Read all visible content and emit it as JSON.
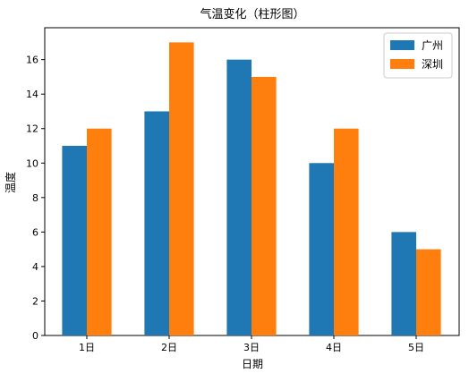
{
  "chart_data": {
    "type": "bar",
    "title": "气温变化（柱形图）",
    "xlabel": "日期",
    "ylabel": "温度",
    "categories": [
      "1日",
      "2日",
      "3日",
      "4日",
      "5日"
    ],
    "series": [
      {
        "name": "广州",
        "values": [
          11,
          13,
          16,
          10,
          6
        ],
        "color": "#1f77b4"
      },
      {
        "name": "深圳",
        "values": [
          12,
          17,
          15,
          12,
          5
        ],
        "color": "#ff7f0e"
      }
    ],
    "ylim": [
      0,
      17.85
    ],
    "yticks": [
      0,
      2,
      4,
      6,
      8,
      10,
      12,
      14,
      16
    ],
    "grid": false,
    "legend_position": "top-right"
  }
}
